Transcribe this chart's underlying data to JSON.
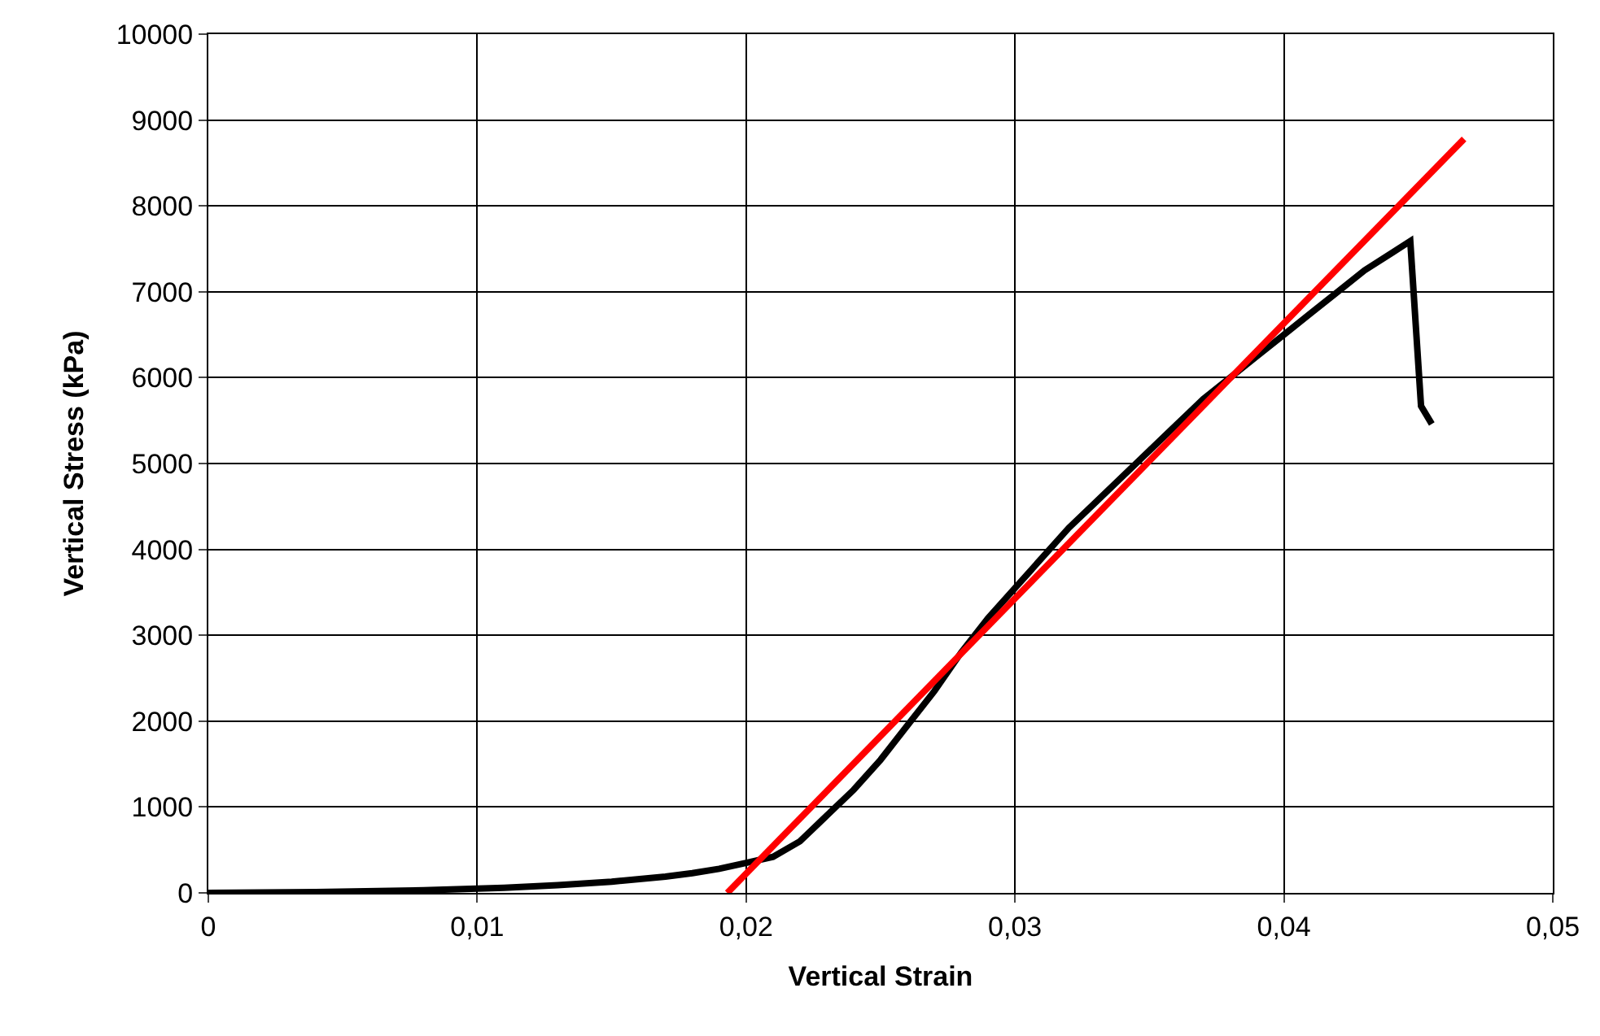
{
  "chart_data": {
    "type": "line",
    "xlabel": "Vertical Strain",
    "ylabel": "Vertical Stress (kPa)",
    "xlim": [
      0,
      0.05
    ],
    "ylim": [
      0,
      10000
    ],
    "xticks": [
      0,
      {
        "value": 0.01,
        "label": "0,01"
      },
      {
        "value": 0.02,
        "label": "0,02"
      },
      {
        "value": 0.03,
        "label": "0,03"
      },
      {
        "value": 0.04,
        "label": "0,04"
      },
      {
        "value": 0.05,
        "label": "0,05"
      }
    ],
    "yticks": [
      0,
      1000,
      2000,
      3000,
      4000,
      5000,
      6000,
      7000,
      8000,
      9000,
      10000
    ],
    "grid": true,
    "marker": "none",
    "line_style": "solid",
    "series": [
      {
        "color": "#000000",
        "x": [
          0,
          0.004,
          0.008,
          0.011,
          0.013,
          0.015,
          0.017,
          0.018,
          0.019,
          0.02,
          0.021,
          0.022,
          0.023,
          0.024,
          0.025,
          0.026,
          0.027,
          0.028,
          0.029,
          0.03,
          0.031,
          0.032,
          0.033,
          0.034,
          0.035,
          0.036,
          0.037,
          0.038,
          0.039,
          0.04,
          0.041,
          0.042,
          0.043,
          0.044,
          0.0447,
          0.0451,
          0.0455
        ],
        "values": [
          0,
          10,
          30,
          60,
          90,
          130,
          190,
          230,
          280,
          350,
          420,
          600,
          900,
          1200,
          1550,
          1950,
          2350,
          2800,
          3200,
          3550,
          3900,
          4250,
          4550,
          4850,
          5150,
          5450,
          5750,
          6000,
          6250,
          6500,
          6750,
          7000,
          7250,
          7450,
          7590,
          5670,
          5460
        ]
      },
      {
        "color": "#ff0000",
        "x": [
          0.0193,
          0.0467
        ],
        "values": [
          0,
          8780
        ]
      }
    ]
  }
}
